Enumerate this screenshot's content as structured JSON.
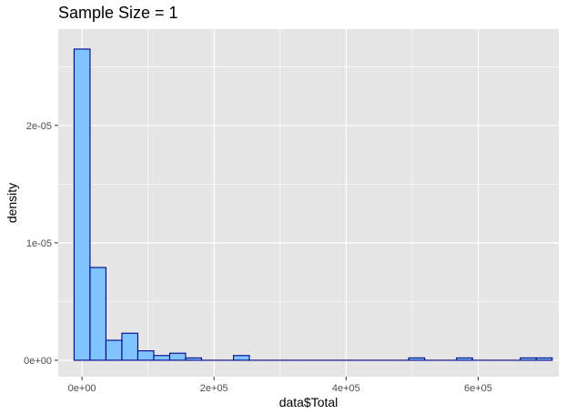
{
  "chart_data": {
    "type": "bar",
    "subtype": "histogram",
    "title": "Sample Size = 1",
    "xlabel": "data$Total",
    "ylabel": "density",
    "bin_width": 24137,
    "bin_starts": [
      -12000,
      12137,
      36274,
      60411,
      84548,
      108685,
      132822,
      156959,
      181096,
      205233,
      229370,
      253507,
      277644,
      301781,
      325918,
      350055,
      374192,
      398329,
      422466,
      446603,
      470740,
      494877,
      519014,
      543151,
      567288,
      591425,
      615562,
      639699,
      663836,
      687973
    ],
    "values": [
      2.65e-05,
      7.9e-06,
      1.7e-06,
      2.3e-06,
      8e-07,
      4e-07,
      6e-07,
      2e-07,
      0,
      0,
      4e-07,
      0,
      0,
      0,
      0,
      0,
      0,
      0,
      0,
      0,
      0,
      2e-07,
      0,
      0,
      2e-07,
      0,
      0,
      0,
      2e-07,
      2e-07
    ],
    "xlim": [
      -36000,
      722000
    ],
    "ylim": [
      -1.4e-06,
      2.82e-05
    ],
    "x_ticks": [
      0,
      200000,
      400000,
      600000
    ],
    "x_tick_labels": [
      "0e+00",
      "2e+05",
      "4e+05",
      "6e+05"
    ],
    "y_ticks": [
      0,
      1e-05,
      2e-05
    ],
    "y_tick_labels": [
      "0e+00",
      "1e-05",
      "2e-05"
    ],
    "grid": true,
    "colors": {
      "panel": "#e5e5e5",
      "grid": "#ffffff",
      "fill": "#80c4ff",
      "outline": "#00008b"
    }
  }
}
